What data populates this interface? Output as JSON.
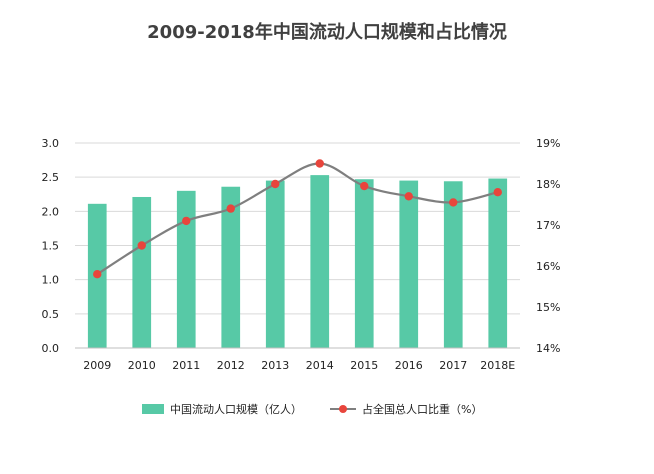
{
  "title": "2009-2018年中国流动人口规模和占比情况",
  "colors": {
    "bar": "#57c9a6",
    "line": "#7f7f7f",
    "marker": "#e8453c",
    "grid": "#d9d9d9"
  },
  "chart_data": {
    "type": "bar",
    "title": "2009-2018年中国流动人口规模和占比情况",
    "categories": [
      "2009",
      "2010",
      "2011",
      "2012",
      "2013",
      "2014",
      "2015",
      "2016",
      "2017",
      "2018E"
    ],
    "series": [
      {
        "name": "中国流动人口规模（亿人）",
        "type": "bar",
        "axis": "left",
        "values": [
          2.11,
          2.21,
          2.3,
          2.36,
          2.45,
          2.53,
          2.47,
          2.45,
          2.44,
          2.48
        ]
      },
      {
        "name": "占全国总人口比重（%）",
        "type": "line",
        "axis": "right",
        "values": [
          15.8,
          16.5,
          17.1,
          17.4,
          18.0,
          18.5,
          17.95,
          17.7,
          17.55,
          17.8
        ]
      }
    ],
    "y_left": {
      "ylim": [
        0,
        3.0
      ],
      "ticks": [
        "0.0",
        "0.5",
        "1.0",
        "1.5",
        "2.0",
        "2.5",
        "3.0"
      ]
    },
    "y_right": {
      "ylim": [
        14,
        19
      ],
      "ticks": [
        "14%",
        "15%",
        "16%",
        "17%",
        "18%",
        "19%"
      ]
    },
    "grid": true,
    "legend": "bottom"
  }
}
